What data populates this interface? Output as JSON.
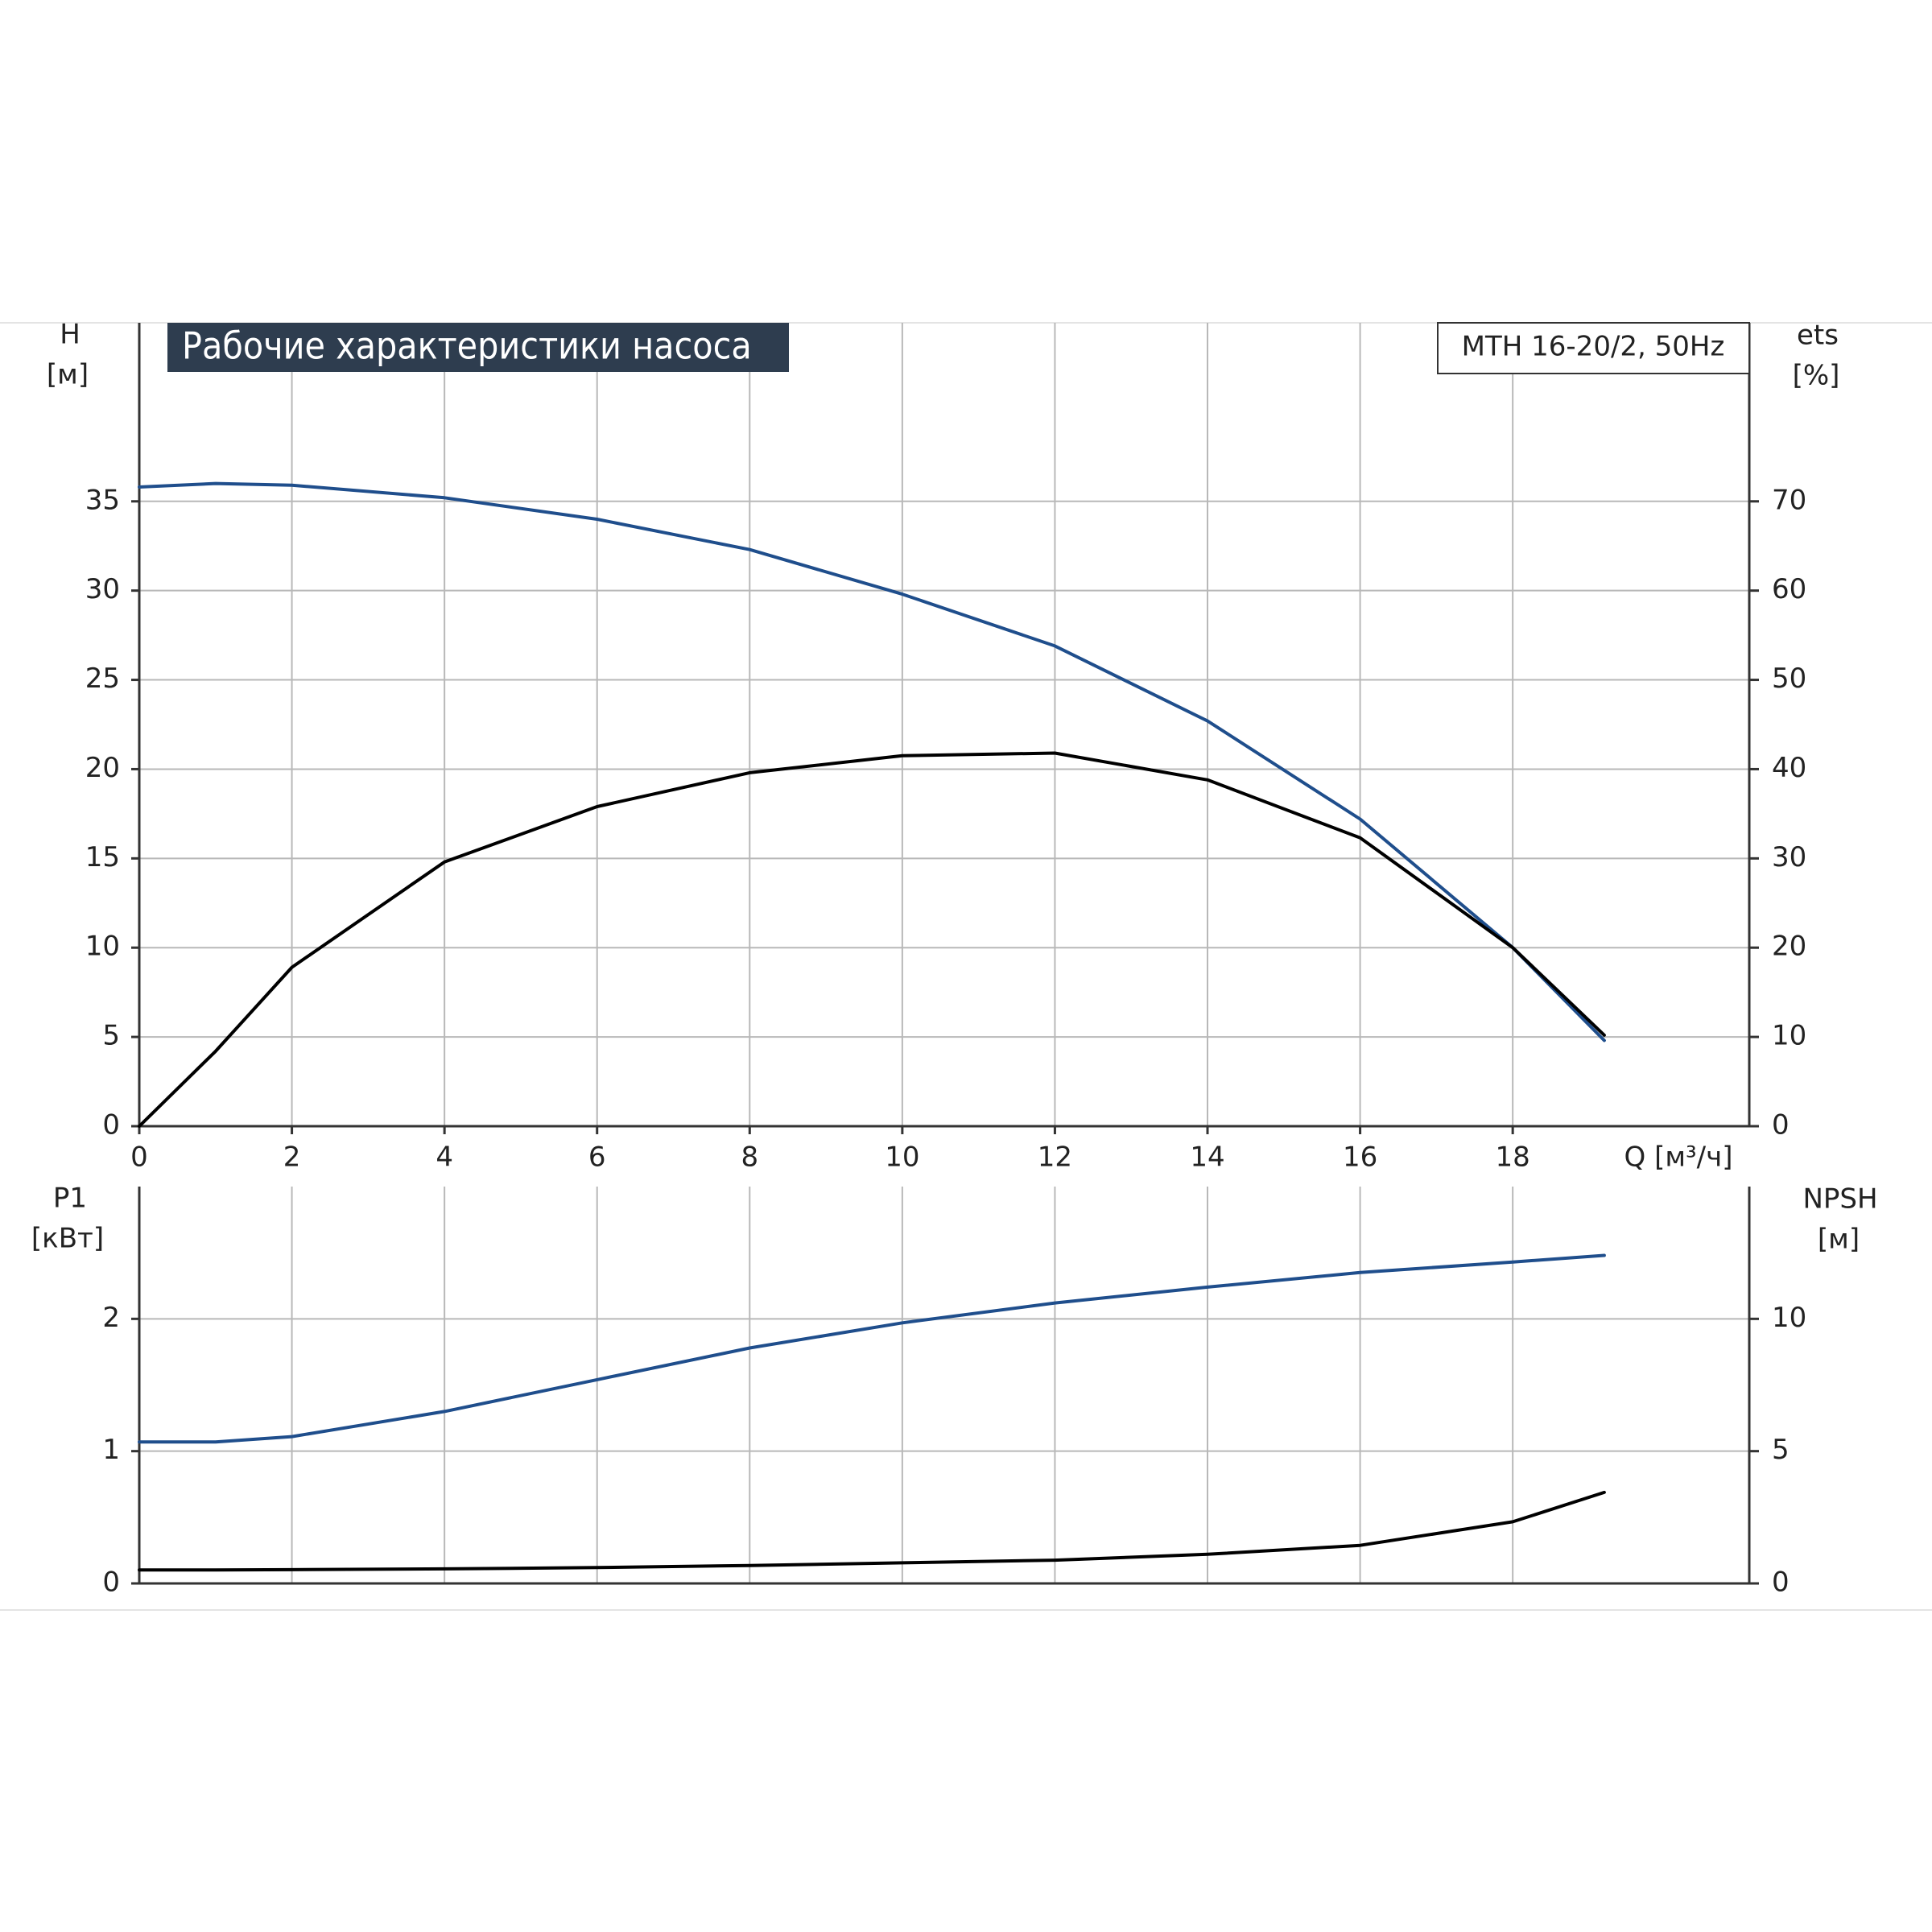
{
  "chart_data": [
    {
      "type": "line",
      "title": "Рабочие характеристики насоса",
      "annotation": "MTH 16-20/2, 50Hz",
      "y_label": "H",
      "y_unit": "[м]",
      "y2_label": "ets",
      "y2_unit": "[%]",
      "x_label": "Q [м³/ч]",
      "x": [
        0,
        1,
        2,
        4,
        6,
        8,
        10,
        12,
        14,
        16,
        18,
        19.2
      ],
      "xlim": [
        0,
        21.1
      ],
      "xticks": [
        0,
        2,
        4,
        6,
        8,
        10,
        12,
        14,
        16,
        18
      ],
      "ylim": [
        0,
        45
      ],
      "yticks": [
        0,
        5,
        10,
        15,
        20,
        25,
        30,
        35
      ],
      "y2lim": [
        0,
        90
      ],
      "y2ticks": [
        0,
        10,
        20,
        30,
        40,
        50,
        60,
        70
      ],
      "grid": true,
      "series": [
        {
          "color": "#1f4e8c",
          "values": [
            35.8,
            36.0,
            35.9,
            35.2,
            34.0,
            32.3,
            29.8,
            26.9,
            22.7,
            17.2,
            10.0,
            4.8
          ]
        },
        {
          "color": "#000000",
          "axis": "y2",
          "values": [
            0,
            8.4,
            17.8,
            29.6,
            35.8,
            39.6,
            41.5,
            41.8,
            38.8,
            32.3,
            20.0,
            10.2
          ]
        }
      ]
    },
    {
      "type": "line",
      "y_label": "P1",
      "y_unit": "[кВт]",
      "y2_label": "NPSH",
      "y2_unit": "[м]",
      "x": [
        0,
        1,
        2,
        4,
        6,
        8,
        10,
        12,
        14,
        16,
        18,
        19.2
      ],
      "xlim": [
        0,
        21.1
      ],
      "ylim": [
        0,
        3
      ],
      "yticks": [
        0,
        1,
        2
      ],
      "y2lim": [
        0,
        15
      ],
      "y2ticks": [
        0,
        5,
        10
      ],
      "grid": true,
      "series": [
        {
          "color": "#1f4e8c",
          "values": [
            1.07,
            1.07,
            1.11,
            1.3,
            1.54,
            1.78,
            1.97,
            2.12,
            2.24,
            2.35,
            2.43,
            2.48
          ]
        },
        {
          "color": "#000000",
          "axis": "y2",
          "values": [
            0.51,
            0.51,
            0.52,
            0.55,
            0.6,
            0.68,
            0.78,
            0.88,
            1.1,
            1.44,
            2.33,
            3.44
          ]
        }
      ]
    }
  ]
}
